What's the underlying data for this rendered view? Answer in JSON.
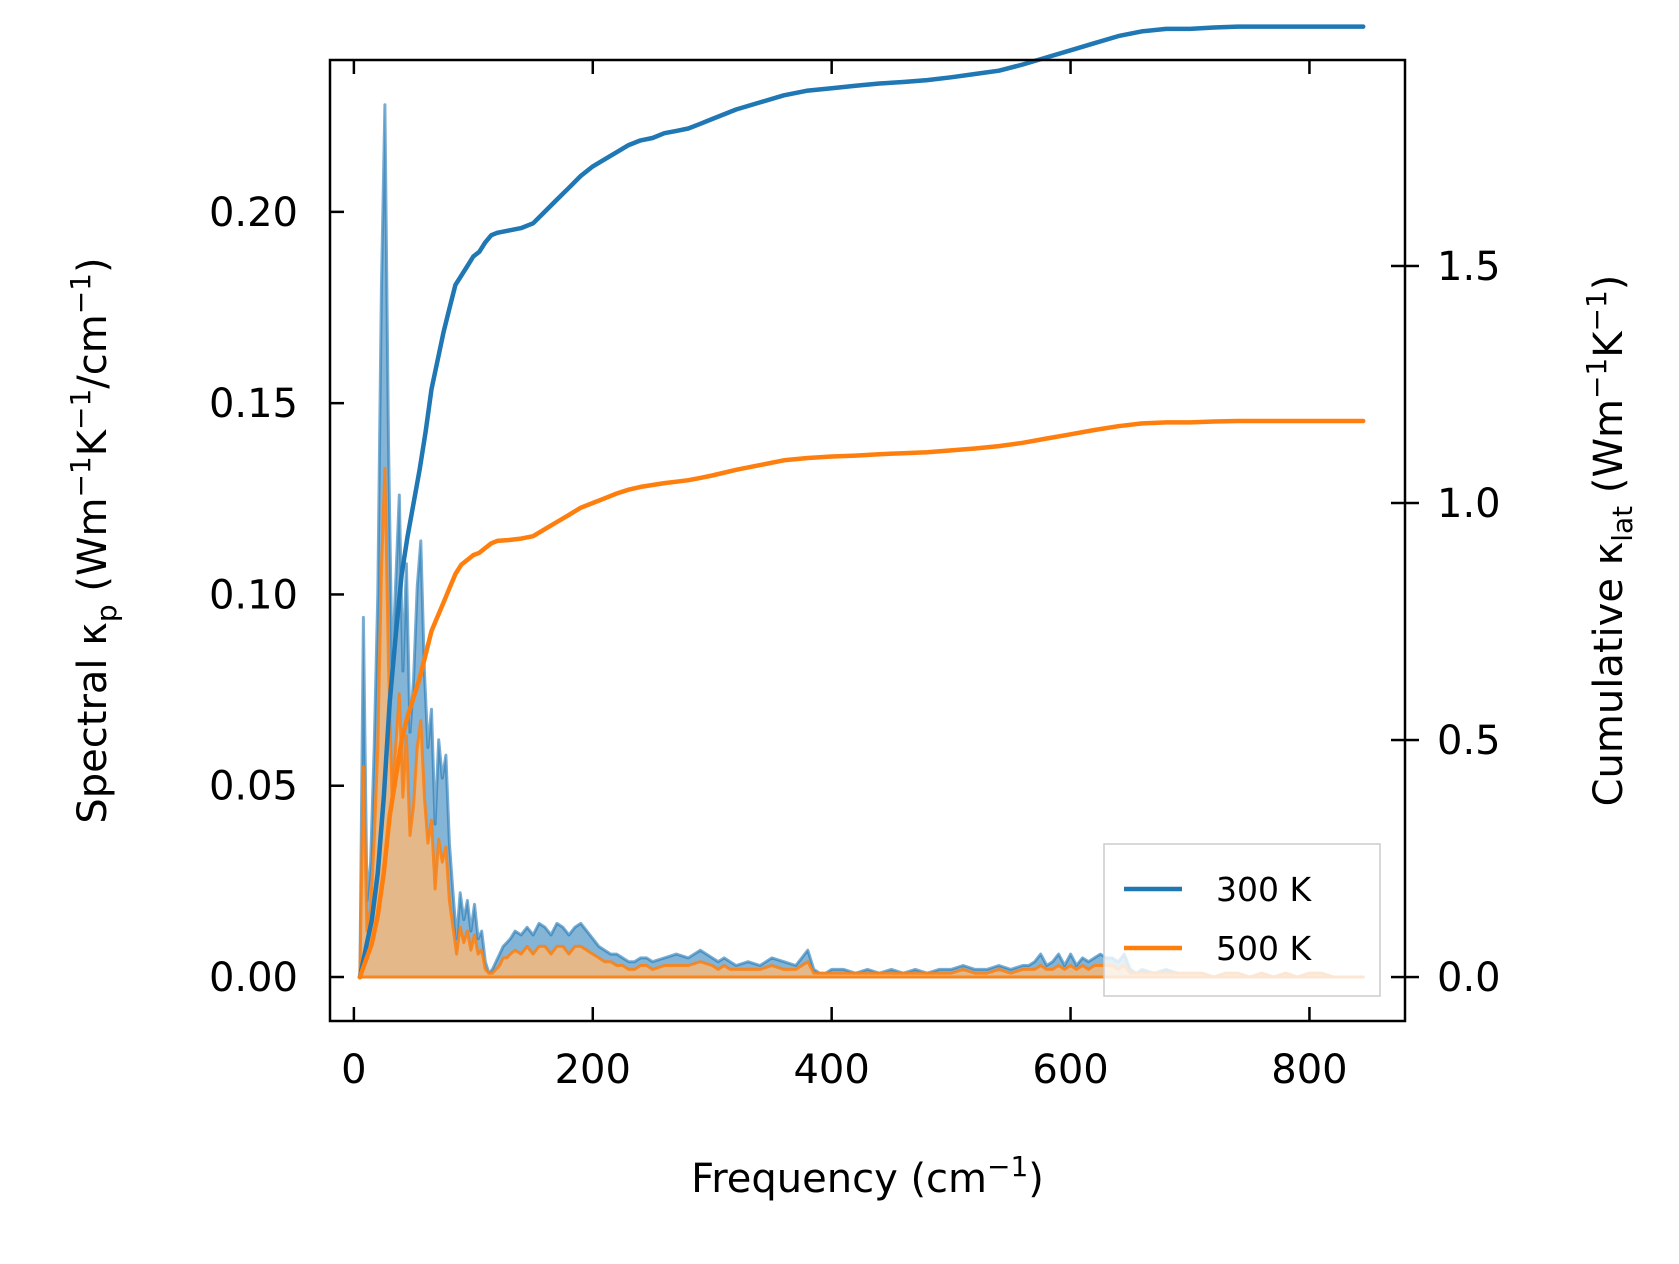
{
  "chart_data": {
    "type": "line",
    "title": "",
    "xlabel": "Frequency (cm⁻¹)",
    "ylabel_left": {
      "prefix": "Spectral κ",
      "sub": "p",
      "suffix": " (Wm",
      "sup1": "−1",
      "mid": "K",
      "sup2": "−1",
      "end": "/cm",
      "sup3": "−1",
      "close": ")"
    },
    "ylabel_right": {
      "prefix": "Cumulative κ",
      "sub": "lat",
      "suffix": " (Wm",
      "sup1": "−1",
      "mid": "K",
      "sup2": "−1",
      "close": ")"
    },
    "xlim": [
      -20,
      880
    ],
    "ylim_left": [
      -0.0115,
      0.2397
    ],
    "ylim_right": [
      -0.0927,
      1.9345
    ],
    "xticks": [
      "0",
      "200",
      "400",
      "600",
      "800"
    ],
    "xtick_values": [
      0,
      200,
      400,
      600,
      800
    ],
    "yticks_left": [
      "0.00",
      "0.05",
      "0.10",
      "0.15",
      "0.20"
    ],
    "ytick_values_left": [
      0.0,
      0.05,
      0.1,
      0.15,
      0.2
    ],
    "yticks_right": [
      "0.0",
      "0.5",
      "1.0",
      "1.5"
    ],
    "ytick_values_right": [
      0.0,
      0.5,
      1.0,
      1.5
    ],
    "legend": {
      "placement": "bottom-right",
      "entries": [
        "300 K",
        "500 K"
      ]
    },
    "colors": {
      "series_300": "#1f77b4",
      "series_500": "#ff7f0e",
      "fill_300": "#1f77b4",
      "fill_500": "#f5b97a"
    },
    "spectral_series": [
      {
        "name": "300 K",
        "x": [
          5,
          8,
          11,
          14,
          17,
          20,
          23,
          26,
          29,
          32,
          35,
          38,
          41,
          44,
          47,
          50,
          53,
          56,
          59,
          62,
          65,
          68,
          71,
          74,
          77,
          80,
          83,
          86,
          89,
          92,
          95,
          98,
          101,
          104,
          107,
          110,
          113,
          116,
          119,
          122,
          125,
          128,
          131,
          135,
          140,
          145,
          150,
          155,
          160,
          165,
          170,
          175,
          180,
          185,
          190,
          195,
          200,
          205,
          210,
          215,
          220,
          225,
          230,
          235,
          240,
          245,
          250,
          260,
          270,
          280,
          290,
          300,
          305,
          310,
          315,
          320,
          330,
          340,
          350,
          360,
          370,
          380,
          385,
          390,
          395,
          400,
          410,
          420,
          430,
          440,
          450,
          460,
          470,
          480,
          490,
          500,
          510,
          520,
          530,
          540,
          550,
          560,
          565,
          570,
          575,
          580,
          585,
          590,
          595,
          600,
          605,
          610,
          615,
          620,
          625,
          630,
          635,
          640,
          645,
          650,
          655,
          660,
          670,
          680,
          690,
          700,
          710,
          720,
          730,
          740,
          750,
          760,
          770,
          780,
          790,
          800,
          810,
          820,
          830,
          845
        ],
        "values": [
          0.0,
          0.094,
          0.02,
          0.03,
          0.06,
          0.1,
          0.18,
          0.228,
          0.14,
          0.08,
          0.103,
          0.126,
          0.08,
          0.108,
          0.064,
          0.078,
          0.102,
          0.114,
          0.08,
          0.06,
          0.07,
          0.04,
          0.062,
          0.052,
          0.058,
          0.035,
          0.022,
          0.01,
          0.022,
          0.015,
          0.02,
          0.012,
          0.019,
          0.01,
          0.012,
          0.004,
          0.001,
          0.002,
          0.004,
          0.006,
          0.008,
          0.009,
          0.01,
          0.012,
          0.011,
          0.013,
          0.011,
          0.014,
          0.013,
          0.011,
          0.014,
          0.013,
          0.011,
          0.013,
          0.014,
          0.012,
          0.01,
          0.008,
          0.007,
          0.006,
          0.006,
          0.005,
          0.004,
          0.004,
          0.005,
          0.005,
          0.004,
          0.005,
          0.006,
          0.005,
          0.007,
          0.005,
          0.004,
          0.005,
          0.004,
          0.003,
          0.004,
          0.003,
          0.005,
          0.004,
          0.003,
          0.007,
          0.002,
          0.001,
          0.001,
          0.002,
          0.002,
          0.001,
          0.002,
          0.001,
          0.002,
          0.001,
          0.002,
          0.001,
          0.002,
          0.002,
          0.003,
          0.002,
          0.002,
          0.003,
          0.002,
          0.003,
          0.003,
          0.004,
          0.006,
          0.003,
          0.004,
          0.006,
          0.003,
          0.006,
          0.003,
          0.005,
          0.004,
          0.005,
          0.006,
          0.005,
          0.005,
          0.004,
          0.006,
          0.002,
          0.001,
          0.002,
          0.001,
          0.002,
          0.001,
          0.001,
          0.001,
          0.0,
          0.001,
          0.001,
          0.0,
          0.001,
          0.0,
          0.001,
          0.0,
          0.001,
          0.001,
          0.0,
          0.0,
          0.0
        ]
      },
      {
        "name": "500 K",
        "x": [
          5,
          8,
          11,
          14,
          17,
          20,
          23,
          26,
          29,
          32,
          35,
          38,
          41,
          44,
          47,
          50,
          53,
          56,
          59,
          62,
          65,
          68,
          71,
          74,
          77,
          80,
          83,
          86,
          89,
          92,
          95,
          98,
          101,
          104,
          107,
          110,
          113,
          116,
          119,
          122,
          125,
          128,
          131,
          135,
          140,
          145,
          150,
          155,
          160,
          165,
          170,
          175,
          180,
          185,
          190,
          195,
          200,
          205,
          210,
          215,
          220,
          225,
          230,
          235,
          240,
          245,
          250,
          260,
          270,
          280,
          290,
          300,
          305,
          310,
          315,
          320,
          330,
          340,
          350,
          360,
          370,
          380,
          385,
          390,
          395,
          400,
          410,
          420,
          430,
          440,
          450,
          460,
          470,
          480,
          490,
          500,
          510,
          520,
          530,
          540,
          550,
          560,
          565,
          570,
          575,
          580,
          585,
          590,
          595,
          600,
          605,
          610,
          615,
          620,
          625,
          630,
          635,
          640,
          645,
          650,
          655,
          660,
          670,
          680,
          690,
          700,
          710,
          720,
          730,
          740,
          750,
          760,
          770,
          780,
          790,
          800,
          810,
          820,
          830,
          845
        ],
        "values": [
          0.0,
          0.055,
          0.012,
          0.018,
          0.036,
          0.06,
          0.106,
          0.133,
          0.082,
          0.047,
          0.06,
          0.074,
          0.047,
          0.063,
          0.037,
          0.045,
          0.06,
          0.067,
          0.047,
          0.035,
          0.041,
          0.023,
          0.036,
          0.03,
          0.034,
          0.02,
          0.013,
          0.006,
          0.013,
          0.009,
          0.012,
          0.007,
          0.011,
          0.006,
          0.007,
          0.002,
          0.001,
          0.001,
          0.002,
          0.003,
          0.005,
          0.005,
          0.006,
          0.007,
          0.006,
          0.008,
          0.006,
          0.008,
          0.008,
          0.006,
          0.008,
          0.008,
          0.006,
          0.008,
          0.008,
          0.007,
          0.006,
          0.005,
          0.004,
          0.004,
          0.003,
          0.003,
          0.002,
          0.002,
          0.003,
          0.003,
          0.002,
          0.003,
          0.003,
          0.003,
          0.004,
          0.003,
          0.002,
          0.003,
          0.002,
          0.002,
          0.002,
          0.002,
          0.003,
          0.002,
          0.002,
          0.004,
          0.001,
          0.001,
          0.001,
          0.001,
          0.001,
          0.001,
          0.001,
          0.001,
          0.001,
          0.001,
          0.001,
          0.001,
          0.001,
          0.001,
          0.002,
          0.001,
          0.001,
          0.002,
          0.001,
          0.002,
          0.002,
          0.002,
          0.003,
          0.002,
          0.002,
          0.003,
          0.002,
          0.003,
          0.002,
          0.003,
          0.002,
          0.003,
          0.003,
          0.003,
          0.003,
          0.002,
          0.003,
          0.001,
          0.001,
          0.001,
          0.001,
          0.001,
          0.001,
          0.001,
          0.001,
          0.0,
          0.001,
          0.001,
          0.0,
          0.001,
          0.0,
          0.001,
          0.0,
          0.001,
          0.001,
          0.0,
          0.0,
          0.0
        ]
      }
    ],
    "cumulative_series": [
      {
        "name": "300 K",
        "x": [
          5,
          10,
          15,
          20,
          25,
          30,
          35,
          40,
          45,
          50,
          55,
          60,
          65,
          70,
          75,
          80,
          85,
          90,
          95,
          100,
          105,
          110,
          115,
          120,
          130,
          140,
          150,
          160,
          170,
          180,
          190,
          200,
          210,
          220,
          230,
          240,
          250,
          260,
          270,
          280,
          290,
          300,
          320,
          340,
          360,
          380,
          400,
          420,
          440,
          460,
          480,
          500,
          520,
          540,
          560,
          580,
          600,
          620,
          640,
          660,
          680,
          700,
          720,
          740,
          760,
          780,
          800,
          820,
          845
        ],
        "values": [
          0.0,
          0.06,
          0.12,
          0.22,
          0.38,
          0.58,
          0.72,
          0.85,
          0.93,
          1.0,
          1.07,
          1.15,
          1.24,
          1.3,
          1.36,
          1.41,
          1.46,
          1.48,
          1.5,
          1.52,
          1.53,
          1.55,
          1.565,
          1.57,
          1.575,
          1.58,
          1.59,
          1.615,
          1.64,
          1.665,
          1.69,
          1.71,
          1.725,
          1.74,
          1.755,
          1.765,
          1.77,
          1.78,
          1.785,
          1.79,
          1.8,
          1.81,
          1.83,
          1.845,
          1.86,
          1.87,
          1.875,
          1.88,
          1.885,
          1.888,
          1.892,
          1.898,
          1.905,
          1.912,
          1.925,
          1.94,
          1.955,
          1.97,
          1.985,
          1.995,
          2.0,
          2.0,
          2.003,
          2.005,
          2.005,
          2.005,
          2.005,
          2.005,
          2.005
        ]
      },
      {
        "name": "500 K",
        "x": [
          5,
          10,
          15,
          20,
          25,
          30,
          35,
          40,
          45,
          50,
          55,
          60,
          65,
          70,
          75,
          80,
          85,
          90,
          95,
          100,
          105,
          110,
          115,
          120,
          130,
          140,
          150,
          160,
          170,
          180,
          190,
          200,
          210,
          220,
          230,
          240,
          250,
          260,
          270,
          280,
          290,
          300,
          320,
          340,
          360,
          380,
          400,
          420,
          440,
          460,
          480,
          500,
          520,
          540,
          560,
          580,
          600,
          620,
          640,
          660,
          680,
          700,
          720,
          740,
          760,
          780,
          800,
          820,
          845
        ],
        "values": [
          0.0,
          0.035,
          0.07,
          0.13,
          0.22,
          0.34,
          0.42,
          0.5,
          0.55,
          0.59,
          0.63,
          0.68,
          0.73,
          0.76,
          0.79,
          0.82,
          0.85,
          0.87,
          0.88,
          0.89,
          0.895,
          0.905,
          0.915,
          0.92,
          0.922,
          0.925,
          0.93,
          0.945,
          0.96,
          0.975,
          0.99,
          1.0,
          1.01,
          1.02,
          1.028,
          1.034,
          1.038,
          1.042,
          1.045,
          1.048,
          1.053,
          1.058,
          1.07,
          1.08,
          1.09,
          1.095,
          1.098,
          1.1,
          1.103,
          1.105,
          1.107,
          1.111,
          1.115,
          1.12,
          1.127,
          1.136,
          1.145,
          1.154,
          1.162,
          1.168,
          1.17,
          1.17,
          1.172,
          1.173,
          1.173,
          1.173,
          1.173,
          1.173,
          1.173
        ]
      }
    ]
  }
}
